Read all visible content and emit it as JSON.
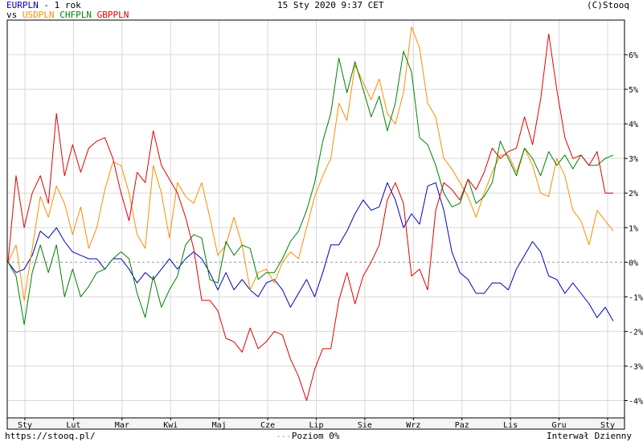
{
  "header": {
    "title_symbol": "EURPLN",
    "title_rest": " - 1 rok",
    "vs_label": "vs",
    "compare": [
      {
        "label": "USDPLN",
        "color": "#ff8c00"
      },
      {
        "label": "CHFPLN",
        "color": "#008000"
      },
      {
        "label": "GBPPLN",
        "color": "#e00000"
      }
    ],
    "date": "15 Sty 2020 9:37 CET",
    "copyright": "(C)Stooq"
  },
  "footer": {
    "url": "https://stooq.pl/",
    "baseline_label": "Poziom 0%",
    "interval": "Interwał Dzienny"
  },
  "chart_data": {
    "type": "line",
    "x_labels": [
      "Sty",
      "Lut",
      "Mar",
      "Kwi",
      "Maj",
      "Cze",
      "Lip",
      "Sie",
      "Wrz",
      "Paz",
      "Lis",
      "Gru",
      "Sty"
    ],
    "y_ticks": [
      "6%",
      "5%",
      "4%",
      "3%",
      "2%",
      "1%",
      "0%",
      "-1%",
      "-2%",
      "-3%",
      "-4%"
    ],
    "ylim": [
      -4.5,
      7
    ],
    "grid": true,
    "baseline": 0,
    "series": [
      {
        "name": "EURPLN",
        "color": "#0000c0",
        "values": [
          0,
          -0.3,
          -0.2,
          0.2,
          0.9,
          0.7,
          1.0,
          0.6,
          0.3,
          0.2,
          0.1,
          0.1,
          -0.2,
          0.1,
          0.1,
          -0.2,
          -0.6,
          -0.3,
          -0.5,
          -0.2,
          0.1,
          -0.2,
          0.1,
          0.3,
          0.1,
          -0.3,
          -0.8,
          -0.3,
          -0.8,
          -0.5,
          -0.8,
          -1.0,
          -0.6,
          -0.5,
          -0.8,
          -1.3,
          -0.9,
          -0.5,
          -1.0,
          -0.3,
          0.5,
          0.5,
          0.9,
          1.4,
          1.8,
          1.5,
          1.6,
          2.3,
          1.8,
          1.0,
          1.4,
          1.1,
          2.2,
          2.3,
          1.5,
          0.3,
          -0.3,
          -0.5,
          -0.9,
          -0.9,
          -0.6,
          -0.6,
          -0.8,
          -0.2,
          0.2,
          0.6,
          0.3,
          -0.4,
          -0.5,
          -0.9,
          -0.6,
          -0.9,
          -1.2,
          -1.6,
          -1.3,
          -1.7
        ]
      },
      {
        "name": "USDPLN",
        "color": "#ff8c00",
        "values": [
          0,
          0.5,
          -1.1,
          0.4,
          1.9,
          1.3,
          2.2,
          1.7,
          0.8,
          1.6,
          0.4,
          1.0,
          2.1,
          2.9,
          2.8,
          2.0,
          0.8,
          0.4,
          2.8,
          2.0,
          0.7,
          2.3,
          1.9,
          1.7,
          2.3,
          1.3,
          0.2,
          0.5,
          1.3,
          0.5,
          -0.8,
          -0.3,
          -0.2,
          -0.6,
          0.0,
          0.3,
          0.1,
          1.0,
          1.9,
          2.5,
          3.0,
          4.6,
          4.1,
          5.7,
          5.2,
          4.7,
          5.3,
          4.3,
          4.0,
          4.9,
          6.8,
          6.2,
          4.6,
          4.2,
          3.0,
          2.7,
          2.3,
          1.9,
          1.3,
          2.0,
          2.6,
          3.1,
          3.1,
          2.6,
          3.3,
          2.8,
          2.0,
          1.9,
          3.0,
          2.5,
          1.5,
          1.2,
          0.5,
          1.5,
          1.2,
          0.9
        ]
      },
      {
        "name": "CHFPLN",
        "color": "#008000",
        "values": [
          0,
          -0.4,
          -1.8,
          -0.3,
          0.5,
          -0.3,
          0.5,
          -1.0,
          -0.2,
          -1.0,
          -0.7,
          -0.3,
          -0.2,
          0.1,
          0.3,
          0.1,
          -0.9,
          -1.6,
          -0.4,
          -1.3,
          -0.8,
          -0.4,
          0.5,
          0.8,
          0.7,
          -0.5,
          -0.6,
          0.6,
          0.2,
          0.5,
          0.4,
          -0.5,
          -0.3,
          -0.3,
          0.1,
          0.6,
          0.9,
          1.5,
          2.3,
          3.5,
          4.3,
          5.9,
          4.9,
          5.8,
          5.0,
          4.2,
          4.8,
          3.8,
          4.6,
          6.1,
          5.5,
          3.6,
          3.4,
          2.8,
          2.0,
          1.6,
          1.7,
          2.4,
          1.7,
          1.9,
          2.3,
          3.5,
          3.0,
          2.5,
          3.3,
          3.0,
          2.5,
          3.2,
          2.8,
          3.1,
          2.7,
          3.1,
          2.8,
          2.8,
          3.0,
          3.1
        ]
      },
      {
        "name": "GBPPLN",
        "color": "#e00000",
        "values": [
          0,
          2.5,
          1.0,
          2.0,
          2.5,
          1.7,
          4.3,
          2.5,
          3.4,
          2.6,
          3.3,
          3.5,
          3.6,
          3.0,
          2.0,
          1.2,
          2.6,
          2.3,
          3.8,
          2.8,
          2.4,
          2.0,
          1.3,
          0.4,
          -1.1,
          -1.1,
          -1.4,
          -2.2,
          -2.3,
          -2.6,
          -1.9,
          -2.5,
          -2.3,
          -2.0,
          -2.1,
          -2.8,
          -3.3,
          -4.0,
          -3.1,
          -2.5,
          -2.5,
          -1.1,
          -0.3,
          -1.2,
          -0.4,
          0.0,
          0.5,
          1.8,
          2.3,
          1.7,
          -0.4,
          -0.2,
          -0.8,
          1.5,
          2.3,
          2.1,
          1.8,
          2.4,
          2.1,
          2.6,
          3.3,
          3.0,
          3.2,
          3.3,
          4.2,
          3.4,
          4.7,
          6.6,
          5.0,
          3.6,
          3.0,
          3.1,
          2.8,
          3.2,
          2.0,
          2.0
        ]
      }
    ]
  }
}
